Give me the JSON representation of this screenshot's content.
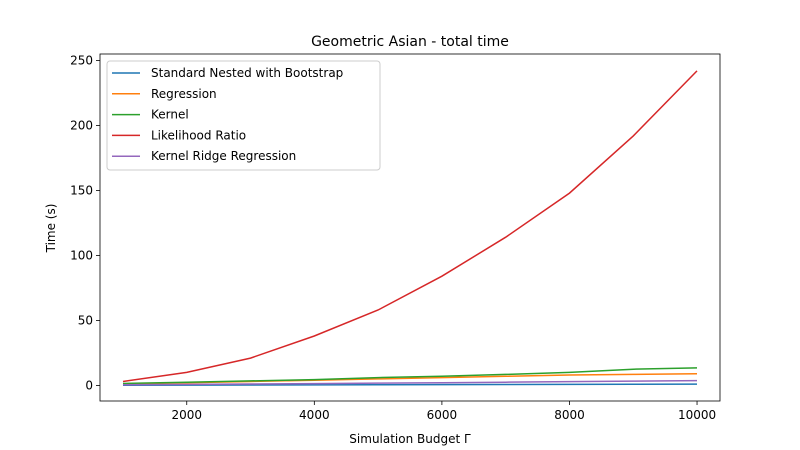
{
  "chart_data": {
    "type": "line",
    "title": "Geometric Asian - total time",
    "xlabel": "Simulation Budget Γ",
    "ylabel": "Time (s)",
    "xlim": [
      640,
      10360
    ],
    "ylim": [
      -12,
      255
    ],
    "xticks": [
      2000,
      4000,
      6000,
      8000,
      10000
    ],
    "yticks": [
      0,
      50,
      100,
      150,
      200,
      250
    ],
    "grid": false,
    "legend_position": "top-left",
    "x": [
      1000,
      2000,
      3000,
      4000,
      5000,
      6000,
      7000,
      8000,
      9000,
      10000
    ],
    "series": [
      {
        "name": "Standard Nested with Bootstrap",
        "color": "#1f77b4",
        "values": [
          0.1,
          0.2,
          0.3,
          0.4,
          0.5,
          0.6,
          0.7,
          0.8,
          0.9,
          1.0
        ]
      },
      {
        "name": "Regression",
        "color": "#ff7f0e",
        "values": [
          1.0,
          2.0,
          3.0,
          4.0,
          5.0,
          6.0,
          7.0,
          8.0,
          8.5,
          9.0
        ]
      },
      {
        "name": "Kernel",
        "color": "#2ca02c",
        "values": [
          1.5,
          2.5,
          3.5,
          4.5,
          6.0,
          7.0,
          8.5,
          10.0,
          12.5,
          13.5
        ]
      },
      {
        "name": "Likelihood Ratio",
        "color": "#d62728",
        "values": [
          3,
          10,
          21,
          38,
          58,
          84,
          114,
          148,
          192,
          242
        ]
      },
      {
        "name": "Kernel Ridge Regression",
        "color": "#9467bd",
        "values": [
          0.5,
          0.8,
          1.1,
          1.4,
          1.8,
          2.1,
          2.5,
          2.9,
          3.3,
          3.7
        ]
      }
    ]
  }
}
